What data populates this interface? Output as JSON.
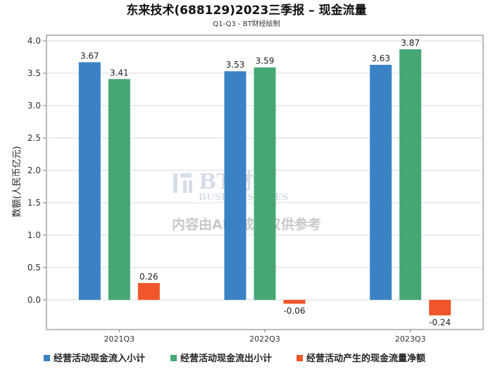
{
  "chart_data": {
    "type": "bar",
    "title": "东来技术(688129)2023三季报 – 现金流量",
    "subtitle": "Q1-Q3 - BT财经绘制",
    "ylabel": "数额(人民币亿元)",
    "xlabel": "",
    "categories": [
      "2021Q3",
      "2022Q3",
      "2023Q3"
    ],
    "ylim": [
      -0.35,
      4.0
    ],
    "yticks": [
      "4.0",
      "3.5",
      "3.0",
      "2.5",
      "2.0",
      "1.5",
      "1.0",
      "0.5",
      "0.0"
    ],
    "ytick_values": [
      4.0,
      3.5,
      3.0,
      2.5,
      2.0,
      1.5,
      1.0,
      0.5,
      0.0
    ],
    "grid": true,
    "legend_position": "bottom",
    "series": [
      {
        "name": "经营活动现金流入小计",
        "color": "#3a82c4",
        "values": [
          3.67,
          3.53,
          3.63
        ],
        "labels": [
          "3.67",
          "3.53",
          "3.63"
        ]
      },
      {
        "name": "经营活动现金流出小计",
        "color": "#45a874",
        "values": [
          3.41,
          3.59,
          3.87
        ],
        "labels": [
          "3.41",
          "3.59",
          "3.87"
        ]
      },
      {
        "name": "经营活动产生的现金流量净额",
        "color": "#f0562a",
        "values": [
          0.26,
          -0.06,
          -0.24
        ],
        "labels": [
          "0.26",
          "-0.06",
          "-0.24"
        ]
      }
    ]
  },
  "watermark": {
    "brand": "BT财经",
    "brand_en": "BUSINESSTIMES",
    "notice": "内容由AI生成，仅供参考"
  }
}
